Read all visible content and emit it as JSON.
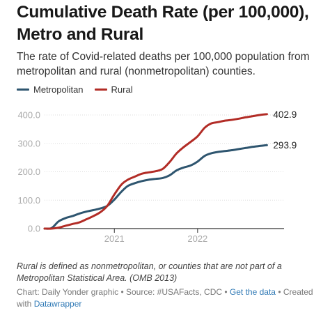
{
  "title": "Cumulative Death Rate (per 100,000), Metro and Rural",
  "subtitle": "The rate of Covid-related deaths per 100,000 population from metropolitan and rural (nonmetropolitan) counties.",
  "footnote": "Rural is defined as nonmetropolitan, or counties that are not part of a Metropolitan Statistical Area. (OMB 2013)",
  "credits": {
    "chart_label": "Chart: Daily Yonder graphic",
    "source_label": "Source: #USAFacts, CDC",
    "get_data": "Get the data",
    "created_with": "Created with",
    "datawrapper": "Datawrapper",
    "separator": "•"
  },
  "colors": {
    "metro": "#2e556f",
    "rural": "#b22c26",
    "grid": "#dddddd",
    "tick": "#aaaaaa"
  },
  "chart_data": {
    "type": "line",
    "title": "Cumulative Death Rate (per 100,000), Metro and Rural",
    "xlabel": "",
    "ylabel": "",
    "xlim": [
      "2020-03-01",
      "2023-01-15"
    ],
    "ylim": [
      0,
      400
    ],
    "yticks": [
      0,
      100,
      200,
      300,
      400
    ],
    "ytick_labels": [
      "0.0",
      "100.0",
      "200.0",
      "300.0",
      "400.0"
    ],
    "xticks": [
      "2021-01-01",
      "2022-01-01"
    ],
    "xtick_labels": [
      "2021",
      "2022"
    ],
    "grid": true,
    "legend_position": "top-left",
    "series": [
      {
        "name": "Metropolitan",
        "color": "#2e556f",
        "end_label": "293.9",
        "points": [
          [
            "2020-03-01",
            0
          ],
          [
            "2020-04-01",
            2
          ],
          [
            "2020-05-01",
            25
          ],
          [
            "2020-06-01",
            37
          ],
          [
            "2020-07-01",
            44
          ],
          [
            "2020-08-01",
            53
          ],
          [
            "2020-09-01",
            60
          ],
          [
            "2020-10-01",
            65
          ],
          [
            "2020-11-01",
            71
          ],
          [
            "2020-12-01",
            80
          ],
          [
            "2021-01-01",
            102
          ],
          [
            "2021-02-01",
            130
          ],
          [
            "2021-03-01",
            150
          ],
          [
            "2021-04-01",
            160
          ],
          [
            "2021-05-01",
            167
          ],
          [
            "2021-06-01",
            172
          ],
          [
            "2021-07-01",
            175
          ],
          [
            "2021-08-01",
            178
          ],
          [
            "2021-09-01",
            188
          ],
          [
            "2021-10-01",
            205
          ],
          [
            "2021-11-01",
            215
          ],
          [
            "2021-12-01",
            222
          ],
          [
            "2022-01-01",
            236
          ],
          [
            "2022-02-01",
            256
          ],
          [
            "2022-03-01",
            265
          ],
          [
            "2022-04-01",
            270
          ],
          [
            "2022-05-01",
            273
          ],
          [
            "2022-06-01",
            276
          ],
          [
            "2022-07-01",
            280
          ],
          [
            "2022-08-01",
            284
          ],
          [
            "2022-09-01",
            288
          ],
          [
            "2022-10-01",
            291
          ],
          [
            "2022-11-01",
            293.9
          ]
        ]
      },
      {
        "name": "Rural",
        "color": "#b22c26",
        "end_label": "402.9",
        "points": [
          [
            "2020-03-01",
            0
          ],
          [
            "2020-04-01",
            0
          ],
          [
            "2020-05-01",
            3
          ],
          [
            "2020-06-01",
            10
          ],
          [
            "2020-07-01",
            16
          ],
          [
            "2020-08-01",
            22
          ],
          [
            "2020-09-01",
            33
          ],
          [
            "2020-10-01",
            44
          ],
          [
            "2020-11-01",
            58
          ],
          [
            "2020-12-01",
            80
          ],
          [
            "2021-01-01",
            120
          ],
          [
            "2021-02-01",
            155
          ],
          [
            "2021-03-01",
            172
          ],
          [
            "2021-04-01",
            183
          ],
          [
            "2021-05-01",
            193
          ],
          [
            "2021-06-01",
            198
          ],
          [
            "2021-07-01",
            202
          ],
          [
            "2021-08-01",
            210
          ],
          [
            "2021-09-01",
            235
          ],
          [
            "2021-10-01",
            265
          ],
          [
            "2021-11-01",
            287
          ],
          [
            "2021-12-01",
            305
          ],
          [
            "2022-01-01",
            325
          ],
          [
            "2022-02-01",
            355
          ],
          [
            "2022-03-01",
            370
          ],
          [
            "2022-04-01",
            375
          ],
          [
            "2022-05-01",
            380
          ],
          [
            "2022-06-01",
            383
          ],
          [
            "2022-07-01",
            387
          ],
          [
            "2022-08-01",
            392
          ],
          [
            "2022-09-01",
            396
          ],
          [
            "2022-10-01",
            400
          ],
          [
            "2022-11-01",
            402.9
          ]
        ]
      }
    ]
  }
}
